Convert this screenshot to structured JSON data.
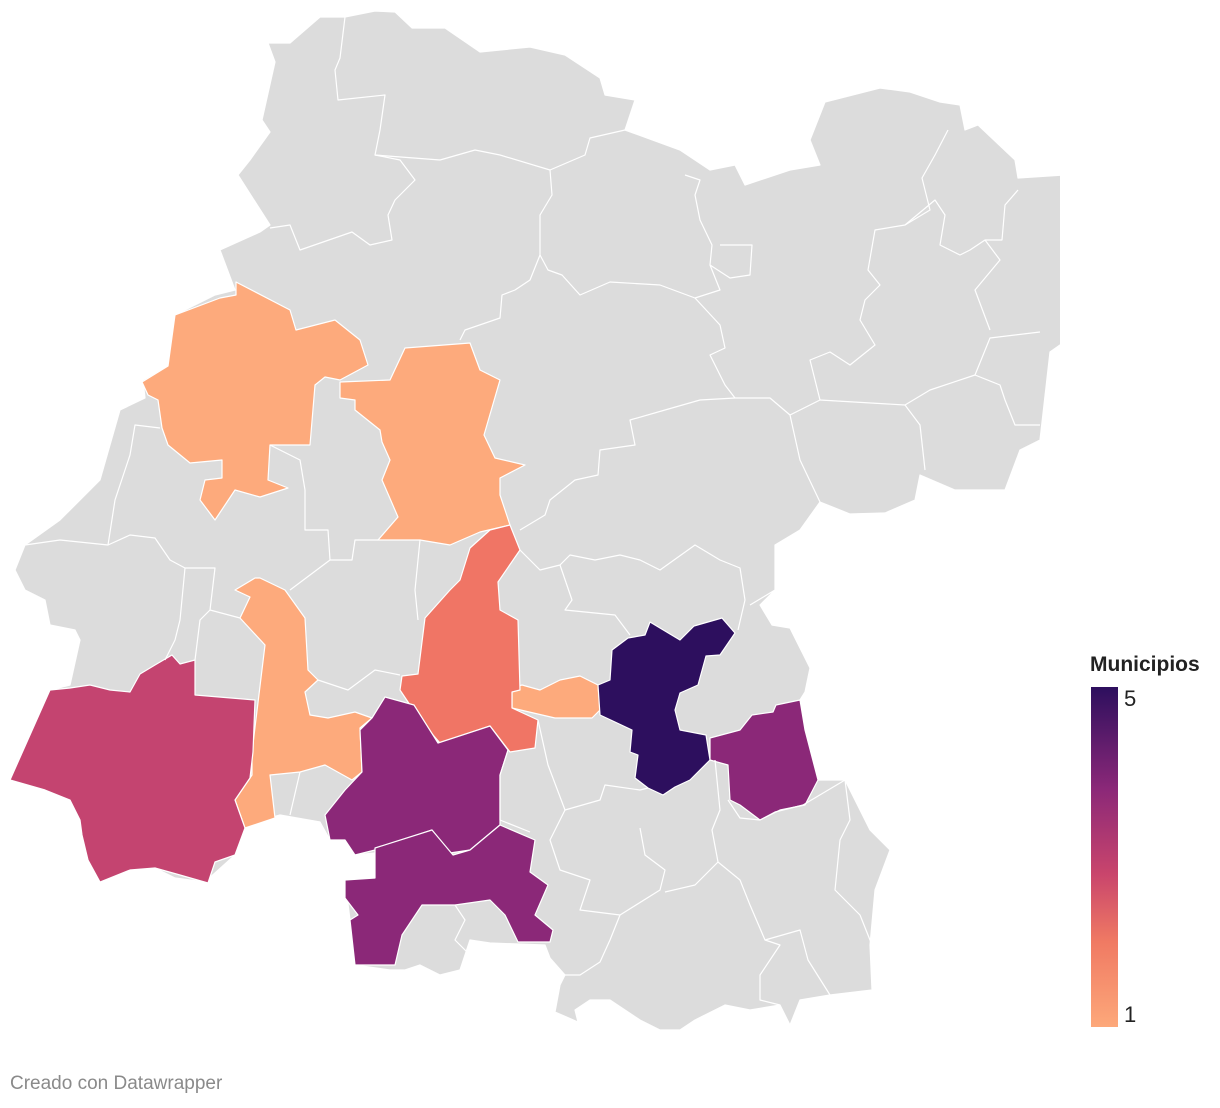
{
  "legend": {
    "title": "Municipios",
    "max_label": "5",
    "min_label": "1",
    "color_low": "#fda87a",
    "color_high": "#2d0f5e"
  },
  "credit": "Creado con Datawrapper",
  "colors": {
    "no_data": "#dcdcdc",
    "value_1": "#fdaa7c",
    "value_2": "#f07565",
    "value_3": "#c44470",
    "value_4": "#8b2878",
    "value_5": "#2d0f5e",
    "border": "#ffffff"
  },
  "highlighted_regions": [
    {
      "id": "nw-a",
      "value": 1
    },
    {
      "id": "nw-b",
      "value": 1
    },
    {
      "id": "w-strip",
      "value": 1
    },
    {
      "id": "small-center",
      "value": 1
    },
    {
      "id": "center-tall",
      "value": 2
    },
    {
      "id": "sw-large",
      "value": 3
    },
    {
      "id": "s-center",
      "value": 4
    },
    {
      "id": "s-lower",
      "value": 4
    },
    {
      "id": "e-center",
      "value": 4
    },
    {
      "id": "center-east",
      "value": 5
    }
  ]
}
